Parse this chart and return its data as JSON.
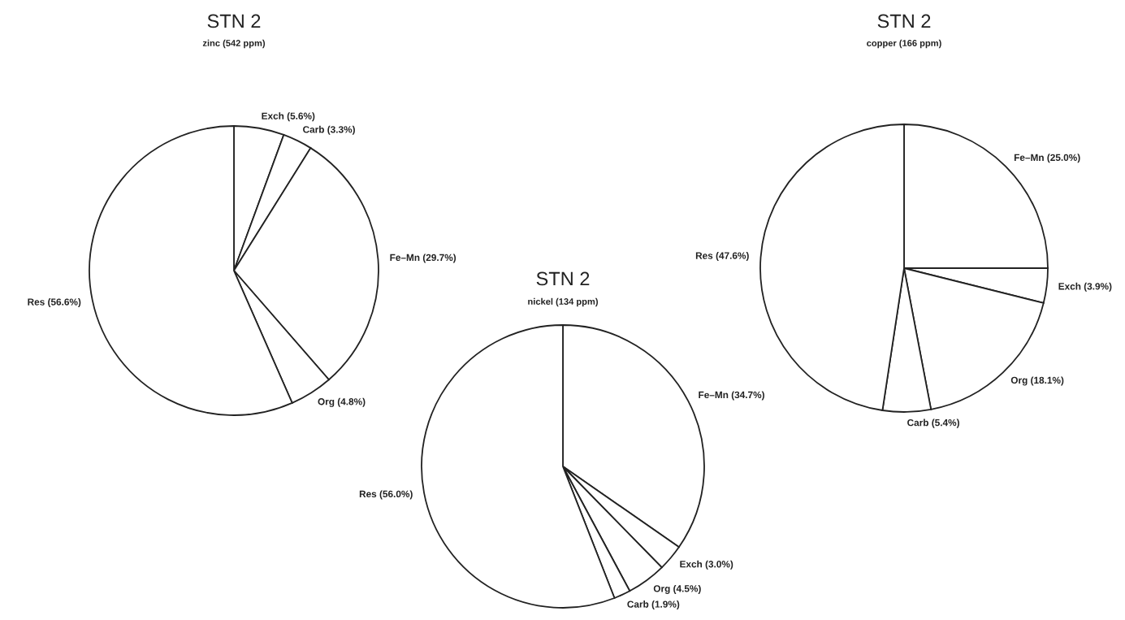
{
  "chart_data": [
    {
      "type": "pie",
      "title": "STN 2",
      "subtitle": "zinc (542 ppm)",
      "categories": [
        "Exch",
        "Carb",
        "Fe–Mn",
        "Org",
        "Res"
      ],
      "values": [
        5.6,
        3.3,
        29.7,
        4.8,
        56.6
      ],
      "value_labels": [
        "(5.6%)",
        "(3.3%)",
        "(29.7%)",
        "(4.8%)",
        "(56.6%)"
      ],
      "colors": [
        "#ffffff",
        "#ffffff",
        "#ffffff",
        "#ffffff",
        "#ffffff"
      ]
    },
    {
      "type": "pie",
      "title": "STN 2",
      "subtitle": "nickel (134 ppm)",
      "categories": [
        "Fe–Mn",
        "Exch",
        "Org",
        "Carb",
        "Res"
      ],
      "values": [
        34.7,
        3.0,
        4.5,
        1.9,
        56.0
      ],
      "value_labels": [
        "(34.7%)",
        "(3.0%)",
        "(4.5%)",
        "(1.9%)",
        "(56.0%)"
      ],
      "colors": [
        "#ffffff",
        "#ffffff",
        "#ffffff",
        "#ffffff",
        "#ffffff"
      ]
    },
    {
      "type": "pie",
      "title": "STN 2",
      "subtitle": "copper (166 ppm)",
      "categories": [
        "Fe–Mn",
        "Exch",
        "Org",
        "Carb",
        "Res"
      ],
      "values": [
        25.0,
        3.9,
        18.1,
        5.4,
        47.6
      ],
      "value_labels": [
        "(25.0%)",
        "(3.9%)",
        "(18.1%)",
        "(5.4%)",
        "(47.6%)"
      ],
      "colors": [
        "#ffffff",
        "#ffffff",
        "#ffffff",
        "#ffffff",
        "#ffffff"
      ]
    }
  ]
}
